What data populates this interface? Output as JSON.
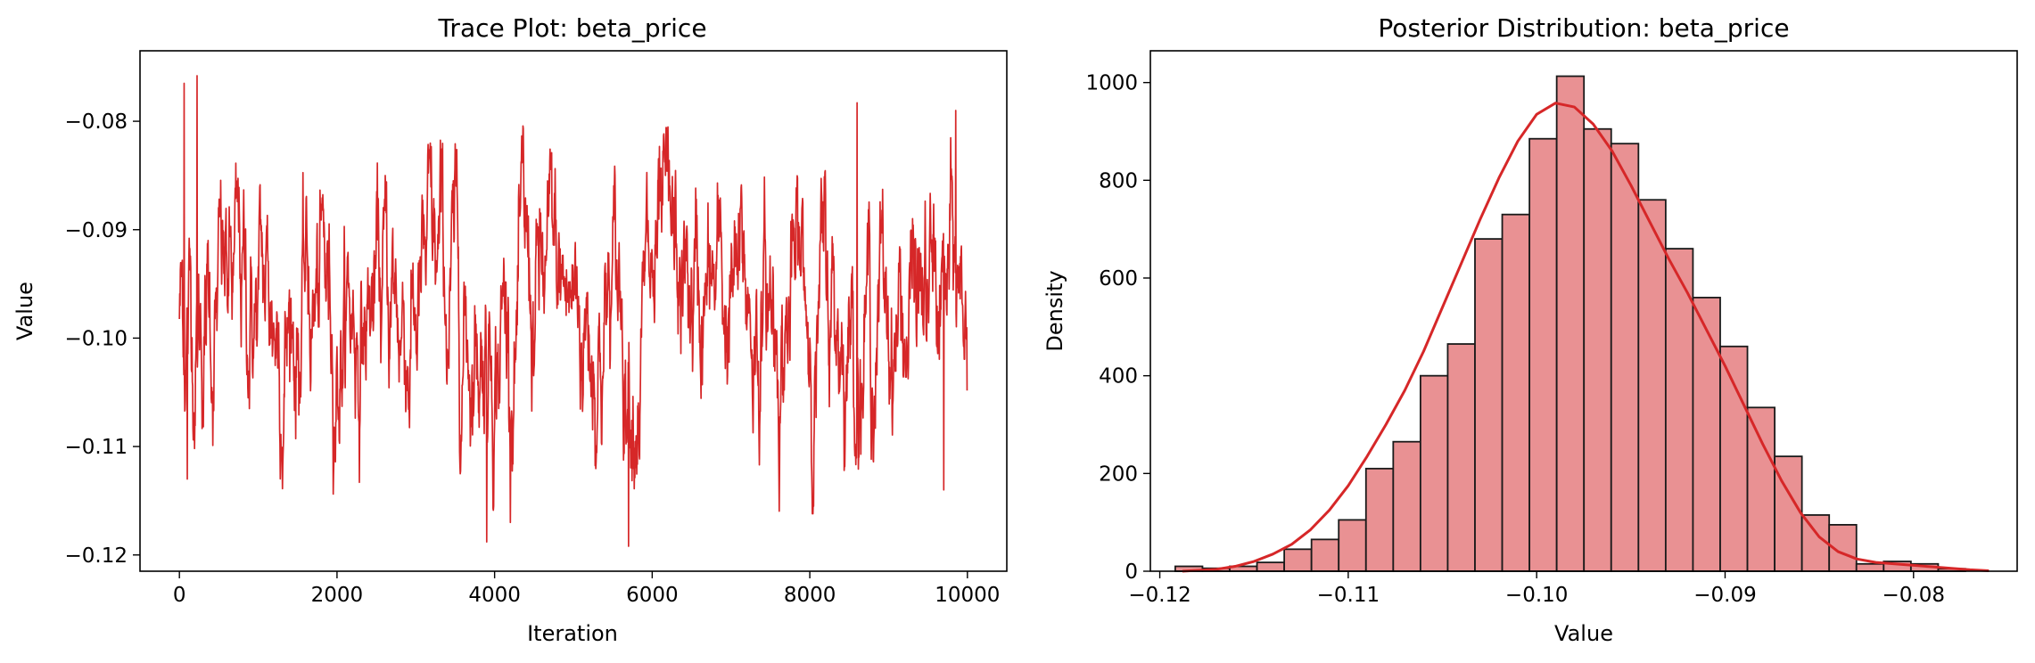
{
  "figure": {
    "background": "#ffffff",
    "line_color": "#d62728",
    "bar_fill": "#e99193",
    "bar_edge": "#1a1a1a"
  },
  "chart_data": [
    {
      "type": "line",
      "title": "Trace Plot: beta_price",
      "xlabel": "Iteration",
      "ylabel": "Value",
      "xlim": [
        -500,
        10500
      ],
      "ylim": [
        -0.1215,
        -0.0735
      ],
      "xticks": [
        0,
        2000,
        4000,
        6000,
        8000,
        10000
      ],
      "xtick_labels": [
        "0",
        "2000",
        "4000",
        "6000",
        "8000",
        "10000"
      ],
      "yticks": [
        -0.12,
        -0.11,
        -0.1,
        -0.09,
        -0.08
      ],
      "ytick_labels": [
        "−0.12",
        "−0.11",
        "−0.10",
        "−0.09",
        "−0.08"
      ],
      "grid": false,
      "color": "#d62728",
      "series": [
        {
          "n_samples": 10000,
          "mean": -0.0975,
          "sd": 0.0065,
          "min": -0.1192,
          "max": -0.0758,
          "notable_points": [
            {
              "x": 60,
              "y": -0.0765
            },
            {
              "x": 100,
              "y": -0.113
            },
            {
              "x": 225,
              "y": -0.0758
            },
            {
              "x": 3900,
              "y": -0.1188
            },
            {
              "x": 4200,
              "y": -0.117
            },
            {
              "x": 5700,
              "y": -0.1192
            },
            {
              "x": 8600,
              "y": -0.0783
            },
            {
              "x": 9700,
              "y": -0.114
            },
            {
              "x": 9850,
              "y": -0.079
            }
          ]
        }
      ]
    },
    {
      "type": "bar",
      "subtype": "histogram_with_kde",
      "title": "Posterior Distribution: beta_price",
      "xlabel": "Value",
      "ylabel": "Density",
      "xlim": [
        -0.1205,
        -0.0745
      ],
      "ylim": [
        0,
        1065
      ],
      "xticks": [
        -0.12,
        -0.11,
        -0.1,
        -0.09,
        -0.08
      ],
      "xtick_labels": [
        "−0.12",
        "−0.11",
        "−0.10",
        "−0.09",
        "−0.08"
      ],
      "yticks": [
        0,
        200,
        400,
        600,
        800,
        1000
      ],
      "ytick_labels": [
        "0",
        "200",
        "400",
        "600",
        "800",
        "1000"
      ],
      "grid": false,
      "bin_start": -0.11918,
      "bin_width": 0.001446,
      "values": [
        10,
        6,
        10,
        18,
        45,
        65,
        105,
        210,
        265,
        400,
        465,
        680,
        730,
        885,
        1013,
        905,
        875,
        760,
        660,
        560,
        460,
        335,
        235,
        115,
        95,
        15,
        20,
        15,
        5,
        0
      ],
      "kde": {
        "x": [
          -0.1188,
          -0.117,
          -0.116,
          -0.115,
          -0.114,
          -0.113,
          -0.112,
          -0.111,
          -0.11,
          -0.109,
          -0.108,
          -0.107,
          -0.106,
          -0.105,
          -0.104,
          -0.103,
          -0.102,
          -0.101,
          -0.1,
          -0.099,
          -0.098,
          -0.097,
          -0.096,
          -0.095,
          -0.094,
          -0.093,
          -0.092,
          -0.091,
          -0.09,
          -0.089,
          -0.088,
          -0.087,
          -0.086,
          -0.085,
          -0.084,
          -0.083,
          -0.082,
          -0.081,
          -0.08,
          -0.079,
          -0.078,
          -0.077,
          -0.076
        ],
        "y": [
          0,
          4,
          10,
          20,
          35,
          55,
          85,
          125,
          175,
          235,
          300,
          370,
          450,
          540,
          630,
          720,
          805,
          880,
          935,
          958,
          950,
          915,
          860,
          790,
          715,
          640,
          570,
          495,
          420,
          340,
          260,
          185,
          120,
          70,
          40,
          25,
          18,
          15,
          12,
          9,
          6,
          3,
          1
        ]
      }
    }
  ]
}
